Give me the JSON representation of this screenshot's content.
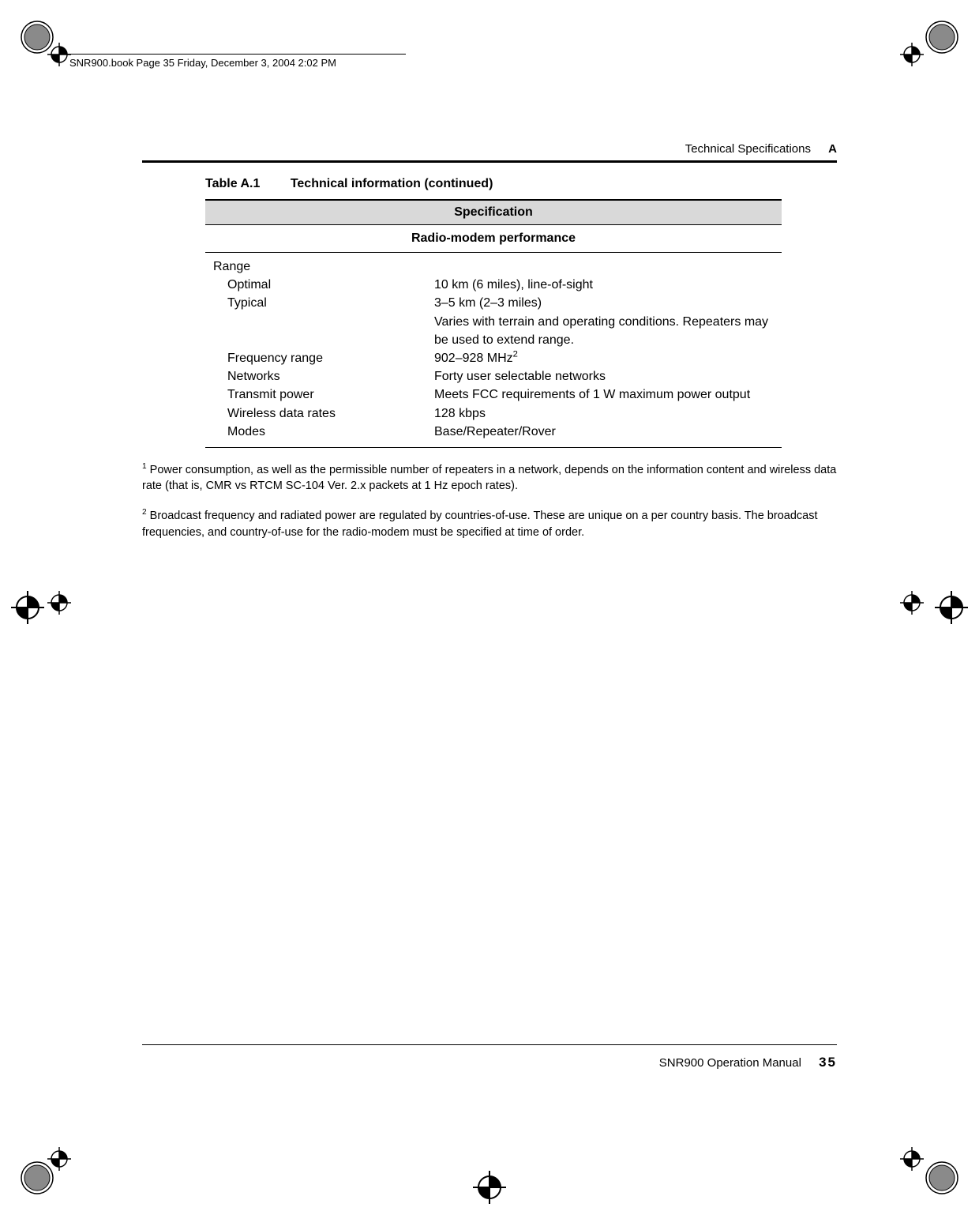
{
  "header_bar_text": "SNR900.book  Page 35  Friday, December 3, 2004  2:02 PM",
  "running_head": {
    "title": "Technical Specifications",
    "appendix": "A"
  },
  "table": {
    "caption_label": "Table A.1",
    "caption_text": "Technical information (continued)",
    "header": "Specification",
    "subheader": "Radio-modem performance",
    "rows": [
      {
        "label": "Range",
        "indent": false,
        "value": ""
      },
      {
        "label": "Optimal",
        "indent": true,
        "value": "10 km (6 miles), line-of-sight"
      },
      {
        "label": "Typical",
        "indent": true,
        "value": "3–5 km (2–3 miles)"
      },
      {
        "label": "",
        "indent": true,
        "value": "Varies with terrain and operating conditions. Repeaters may be used to extend range."
      },
      {
        "label": "Frequency range",
        "indent": true,
        "value_html": "902–928 MHz",
        "sup": "2"
      },
      {
        "label": "Networks",
        "indent": true,
        "value": "Forty user selectable networks"
      },
      {
        "label": "Transmit power",
        "indent": true,
        "value": "Meets FCC requirements of 1 W maximum power output"
      },
      {
        "label": "Wireless data rates",
        "indent": true,
        "value": "128 kbps"
      },
      {
        "label": "Modes",
        "indent": true,
        "value": "Base/Repeater/Rover"
      }
    ]
  },
  "footnotes": {
    "fn1_sup": "1",
    "fn1_text": " Power consumption, as well as the permissible number of repeaters in a network, depends on the information content and wireless data rate (that is, CMR vs RTCM SC-104 Ver. 2.x packets at 1 Hz epoch rates).",
    "fn2_sup": "2",
    "fn2_text": " Broadcast frequency and radiated power are regulated by countries-of-use. These are unique on a per country basis. The broadcast frequencies, and country-of-use for the radio-modem must be specified at time of order."
  },
  "footer": {
    "manual": "SNR900 Operation Manual",
    "page": "35"
  },
  "marks": {
    "color_stroke": "#000000",
    "hatch_fill": "#717171"
  }
}
